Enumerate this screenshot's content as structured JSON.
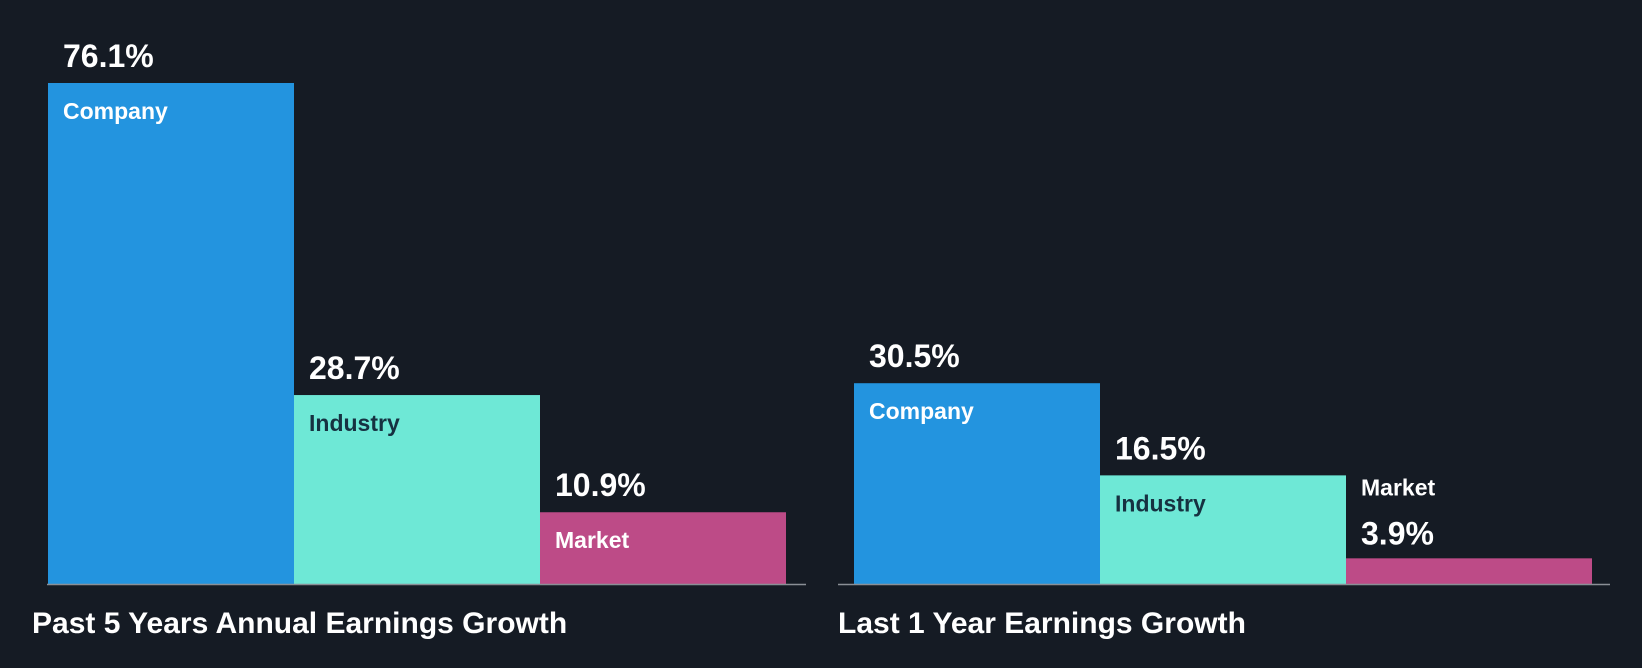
{
  "colors": {
    "background": "#151b24",
    "company": "#2394df",
    "industry": "#6ee8d6",
    "market": "#bd4b87",
    "axis": "#8a8f96",
    "value_text": "#ffffff",
    "label_text_dark": "#163141",
    "label_text_light": "#ffffff"
  },
  "chart_data": [
    {
      "type": "bar",
      "title": "Past 5 Years Annual Earnings Growth",
      "categories": [
        "Company",
        "Industry",
        "Market"
      ],
      "values": [
        76.1,
        28.7,
        10.9
      ],
      "value_labels": [
        "76.1%",
        "28.7%",
        "10.9%"
      ],
      "unit": "%",
      "ylim": [
        0,
        76.1
      ],
      "xlabel": "",
      "ylabel": "",
      "grid": false,
      "legend": "none"
    },
    {
      "type": "bar",
      "title": "Last 1 Year Earnings Growth",
      "categories": [
        "Company",
        "Industry",
        "Market"
      ],
      "values": [
        30.5,
        16.5,
        3.9
      ],
      "value_labels": [
        "30.5%",
        "16.5%",
        "3.9%"
      ],
      "unit": "%",
      "ylim": [
        0,
        76.1
      ],
      "xlabel": "",
      "ylabel": "",
      "grid": false,
      "legend": "none"
    }
  ]
}
